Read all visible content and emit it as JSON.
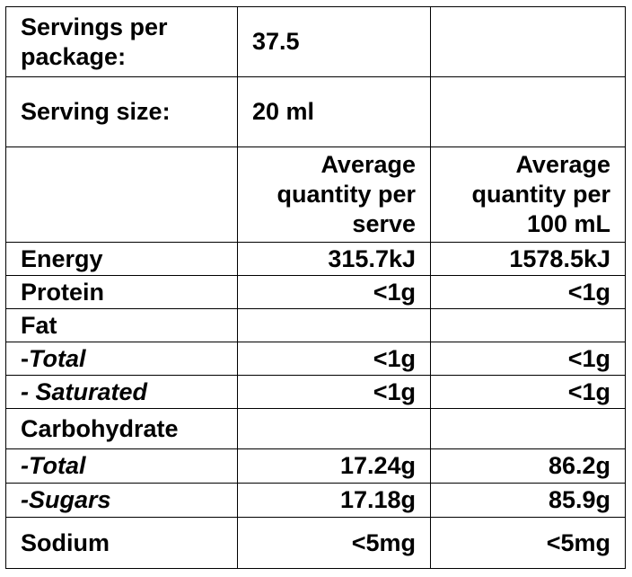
{
  "servings_per_package": {
    "label_line1": "Servings per",
    "label_line2": "package:",
    "value": "37.5"
  },
  "serving_size": {
    "label": "Serving size:",
    "value": "20 ml"
  },
  "headers": {
    "per_serve": [
      "Average",
      "quantity per",
      "serve"
    ],
    "per_100ml": [
      "Average",
      "quantity per",
      "100 mL"
    ]
  },
  "rows": {
    "energy": {
      "label": "Energy",
      "per_serve": "315.7kJ",
      "per_100ml": "1578.5kJ"
    },
    "protein": {
      "label": "Protein",
      "per_serve": "<1g",
      "per_100ml": "<1g"
    },
    "fat": {
      "label": "Fat"
    },
    "fat_total": {
      "prefix": "-",
      "label": "Total",
      "per_serve": "<1g",
      "per_100ml": "<1g"
    },
    "fat_saturated": {
      "label": "- Saturated",
      "per_serve": "<1g",
      "per_100ml": "<1g"
    },
    "carbohydrate": {
      "label": "Carbohydrate"
    },
    "carb_total": {
      "label": "-Total",
      "per_serve": "17.24g",
      "per_100ml": "86.2g"
    },
    "carb_sugars": {
      "label": "-Sugars",
      "per_serve": "17.18g",
      "per_100ml": "85.9g"
    },
    "sodium": {
      "label": "Sodium",
      "per_serve": "<5mg",
      "per_100ml": "<5mg"
    }
  }
}
